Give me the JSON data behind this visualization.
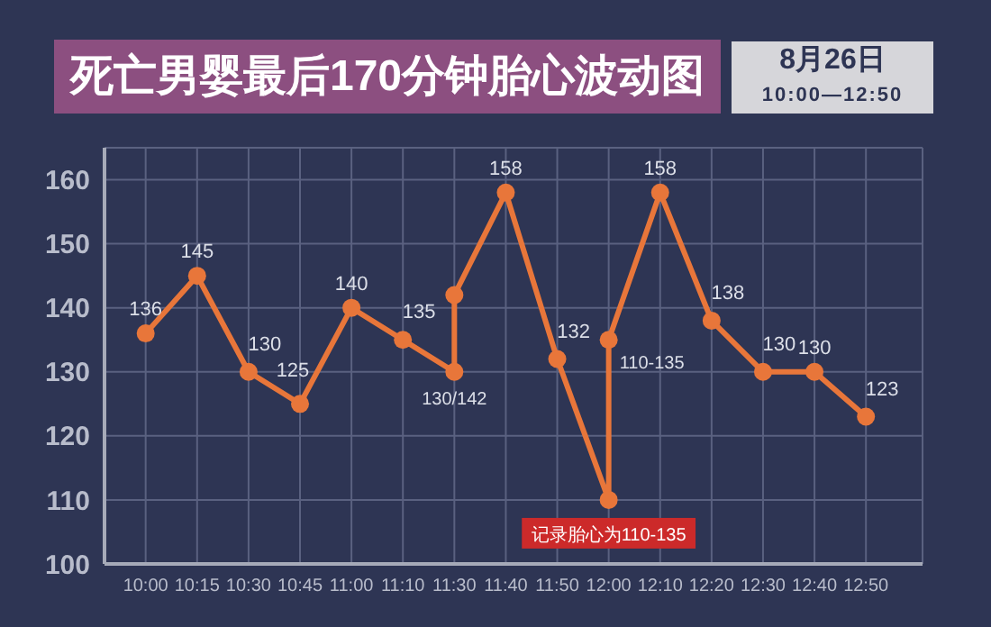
{
  "chart_data": {
    "type": "line",
    "title": "死亡男婴最后170分钟胎心波动图",
    "subtitle": "8月26日\n10:00—12:50",
    "categories": [
      "10:00",
      "10:15",
      "10:30",
      "10:45",
      "11:00",
      "11:10",
      "11:30",
      "11:40",
      "11:50",
      "12:00",
      "12:10",
      "12:20",
      "12:30",
      "12:40",
      "12:50"
    ],
    "series": [
      {
        "color": "#e8763a",
        "x": [
          "10:00",
          "10:15",
          "10:30",
          "10:45",
          "11:00",
          "11:10",
          "11:30",
          "11:30",
          "11:40",
          "11:50",
          "12:00",
          "12:00",
          "12:10",
          "12:20",
          "12:30",
          "12:40",
          "12:50"
        ],
        "values": [
          136,
          145,
          130,
          125,
          140,
          135,
          130,
          142,
          158,
          132,
          110,
          135,
          158,
          138,
          130,
          130,
          123
        ],
        "value_labels": [
          "136",
          "145",
          "130",
          "125",
          "140",
          "135",
          "130/142",
          null,
          "158",
          "132",
          null,
          "110-135",
          "158",
          "138",
          "130",
          "130",
          "123"
        ]
      }
    ],
    "annotations": [
      {
        "text": "记录胎心为110-135",
        "x": "12:00",
        "y": 110
      }
    ],
    "ylim": [
      100,
      165
    ],
    "yticks": [
      100,
      110,
      120,
      130,
      140,
      150,
      160
    ],
    "grid": true,
    "marker": "circle",
    "line_style": "solid"
  }
}
